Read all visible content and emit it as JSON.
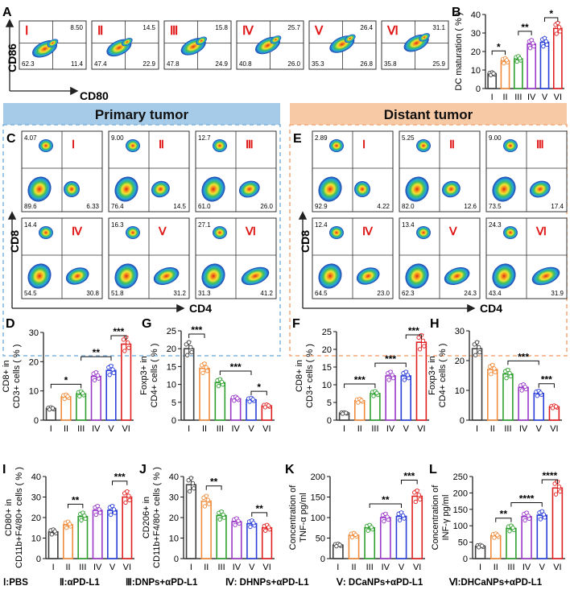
{
  "colors": {
    "groups": [
      "#404040",
      "#f08c3c",
      "#2fa02f",
      "#9a38c8",
      "#2a3fd8",
      "#e02020"
    ],
    "roman_red": "#e01818",
    "primary_bg": "#a6cbe8",
    "distant_bg": "#f7c9a5",
    "primary_border": "#7fb3dd",
    "distant_border": "#f2a876"
  },
  "groups": [
    "I",
    "II",
    "III",
    "IV",
    "V",
    "VI"
  ],
  "panel_letters": {
    "A": "A",
    "B": "B",
    "C": "C",
    "D": "D",
    "E": "E",
    "F": "F",
    "G": "G",
    "H": "H",
    "I": "I",
    "J": "J",
    "K": "K",
    "L": "L"
  },
  "section_titles": {
    "primary": "Primary tumor",
    "distant": "Distant tumor"
  },
  "flow": {
    "A": {
      "y_label": "CD86",
      "x_label": "CD80",
      "plots": [
        {
          "roman": "I",
          "ur": "8.50",
          "ll": "62.3",
          "lr": "11.4"
        },
        {
          "roman": "II",
          "ur": "14.5",
          "ll": "47.4",
          "lr": "22.9"
        },
        {
          "roman": "III",
          "ur": "15.8",
          "ll": "47.8",
          "lr": "24.9"
        },
        {
          "roman": "IV",
          "ur": "25.7",
          "ll": "40.8",
          "lr": "26.0"
        },
        {
          "roman": "V",
          "ur": "26.4",
          "ll": "35.3",
          "lr": "26.8"
        },
        {
          "roman": "VI",
          "ur": "31.1",
          "ll": "35.8",
          "lr": "25.9"
        }
      ]
    },
    "C": {
      "y_label": "CD8",
      "x_label": "CD4",
      "plots": [
        {
          "roman": "I",
          "ul": "4.07",
          "ll": "89.6",
          "lr": "6.33"
        },
        {
          "roman": "II",
          "ul": "9.00",
          "ll": "76.4",
          "lr": "14.5"
        },
        {
          "roman": "III",
          "ul": "12.7",
          "ll": "61.0",
          "lr": "26.0"
        },
        {
          "roman": "IV",
          "ul": "14.4",
          "ll": "54.5",
          "lr": "30.8"
        },
        {
          "roman": "V",
          "ul": "16.3",
          "ll": "51.8",
          "lr": "31.2"
        },
        {
          "roman": "VI",
          "ul": "27.1",
          "ll": "31.3",
          "lr": "41.2"
        }
      ]
    },
    "E": {
      "y_label": "CD8",
      "x_label": "CD4",
      "plots": [
        {
          "roman": "I",
          "ul": "2.89",
          "ll": "92.9",
          "lr": "4.22"
        },
        {
          "roman": "II",
          "ul": "5.25",
          "ll": "82.0",
          "lr": "12.6"
        },
        {
          "roman": "III",
          "ul": "9.00",
          "ll": "73.5",
          "lr": "17.4"
        },
        {
          "roman": "IV",
          "ul": "12.4",
          "ll": "64.5",
          "lr": "23.0"
        },
        {
          "roman": "V",
          "ul": "13.4",
          "ll": "62.3",
          "lr": "24.3"
        },
        {
          "roman": "VI",
          "ul": "24.3",
          "ll": "43.4",
          "lr": "31.9"
        }
      ]
    }
  },
  "chart_data": [
    {
      "panel": "B",
      "type": "bar",
      "categories": [
        "I",
        "II",
        "III",
        "IV",
        "V",
        "VI"
      ],
      "values": [
        8,
        15,
        16,
        24,
        25,
        32.5
      ],
      "ylabel": "DC maturation ( % )",
      "ylim": [
        0,
        40
      ],
      "yticks": [
        "0",
        "10",
        "20",
        "30",
        "40"
      ],
      "brackets": [
        {
          "from": 0,
          "to": 1,
          "label": "*"
        },
        {
          "from": 2,
          "to": 3,
          "label": "**"
        },
        {
          "from": 4,
          "to": 5,
          "label": "*"
        }
      ]
    },
    {
      "panel": "D",
      "type": "bar",
      "categories": [
        "I",
        "II",
        "III",
        "IV",
        "V",
        "VI"
      ],
      "values": [
        4,
        8,
        9,
        15,
        17,
        26
      ],
      "ylabel": [
        "CD8+ in",
        "CD3+ cells ( % )"
      ],
      "ylim": [
        0,
        30
      ],
      "yticks": [
        "0",
        "10",
        "20",
        "30"
      ],
      "brackets": [
        {
          "from": 0,
          "to": 2,
          "label": "*"
        },
        {
          "from": 2,
          "to": 4,
          "label": "**"
        },
        {
          "from": 4,
          "to": 5,
          "label": "***"
        }
      ]
    },
    {
      "panel": "G",
      "type": "bar",
      "categories": [
        "I",
        "II",
        "III",
        "IV",
        "V",
        "VI"
      ],
      "values": [
        20,
        14.5,
        10.5,
        6,
        5.7,
        4
      ],
      "ylabel": [
        "Foxp3+ in",
        "CD4+ cells ( % )"
      ],
      "ylim": [
        0,
        25
      ],
      "yticks": [
        "0",
        "5",
        "10",
        "15",
        "20",
        "25"
      ],
      "brackets": [
        {
          "from": 0,
          "to": 1,
          "label": "***"
        },
        {
          "from": 2,
          "to": 4,
          "label": "***"
        },
        {
          "from": 4,
          "to": 5,
          "label": "*"
        }
      ]
    },
    {
      "panel": "F",
      "type": "bar",
      "categories": [
        "I",
        "II",
        "III",
        "IV",
        "V",
        "VI"
      ],
      "values": [
        2,
        5.5,
        7.5,
        12.5,
        12.5,
        22
      ],
      "ylabel": [
        "CD8+ in",
        "CD3+ cells ( % )"
      ],
      "ylim": [
        0,
        25
      ],
      "yticks": [
        "0",
        "5",
        "10",
        "15",
        "20",
        "25"
      ],
      "brackets": [
        {
          "from": 0,
          "to": 2,
          "label": "***"
        },
        {
          "from": 2,
          "to": 4,
          "label": "***"
        },
        {
          "from": 4,
          "to": 5,
          "label": "***"
        }
      ]
    },
    {
      "panel": "H",
      "type": "bar",
      "categories": [
        "I",
        "II",
        "III",
        "IV",
        "V",
        "VI"
      ],
      "values": [
        24,
        17,
        15.5,
        11,
        9,
        4.5
      ],
      "ylabel": [
        "Foxp3+ in",
        "CD4+ cells ( % )"
      ],
      "ylim": [
        0,
        30
      ],
      "yticks": [
        "0",
        "10",
        "20",
        "30"
      ],
      "brackets": [
        {
          "from": 2,
          "to": 4,
          "label": "***"
        },
        {
          "from": 4,
          "to": 5,
          "label": "***"
        }
      ]
    },
    {
      "panel": "I",
      "type": "bar",
      "categories": [
        "I",
        "II",
        "III",
        "IV",
        "V",
        "VI"
      ],
      "values": [
        13,
        16.5,
        20.5,
        23.5,
        23.5,
        30
      ],
      "ylabel": [
        "CD80+ in",
        "CD11b+F4/80+ cells ( % )"
      ],
      "ylim": [
        0,
        40
      ],
      "yticks": [
        "0",
        "10",
        "20",
        "30",
        "40"
      ],
      "brackets": [
        {
          "from": 1,
          "to": 2,
          "label": "**"
        },
        {
          "from": 4,
          "to": 5,
          "label": "***"
        }
      ]
    },
    {
      "panel": "J",
      "type": "bar",
      "categories": [
        "I",
        "II",
        "III",
        "IV",
        "V",
        "VI"
      ],
      "values": [
        36,
        28,
        21,
        18,
        17,
        15
      ],
      "ylabel": [
        "CD206+ in",
        "CD11b+F4/80+ cells ( % )"
      ],
      "ylim": [
        0,
        40
      ],
      "yticks": [
        "0",
        "10",
        "20",
        "30",
        "40"
      ],
      "brackets": [
        {
          "from": 1,
          "to": 2,
          "label": "**"
        },
        {
          "from": 4,
          "to": 5,
          "label": "**"
        }
      ]
    },
    {
      "panel": "K",
      "type": "bar",
      "categories": [
        "I",
        "II",
        "III",
        "IV",
        "V",
        "VI"
      ],
      "values": [
        33,
        57,
        75,
        100,
        103,
        152
      ],
      "ylabel": [
        "Concentration of",
        "TNF-α pg/ml"
      ],
      "ylim": [
        0,
        200
      ],
      "yticks": [
        "0",
        "50",
        "100",
        "150",
        "200"
      ],
      "brackets": [
        {
          "from": 2,
          "to": 4,
          "label": "**"
        },
        {
          "from": 4,
          "to": 5,
          "label": "***"
        }
      ]
    },
    {
      "panel": "L",
      "type": "bar",
      "categories": [
        "I",
        "II",
        "III",
        "IV",
        "V",
        "VI"
      ],
      "values": [
        38,
        70,
        92,
        128,
        132,
        215
      ],
      "ylabel": [
        "Concentration of",
        "INF-γ pg/ml"
      ],
      "ylim": [
        0,
        250
      ],
      "yticks": [
        "0",
        "50",
        "100",
        "150",
        "200",
        "250"
      ],
      "brackets": [
        {
          "from": 1,
          "to": 2,
          "label": "**"
        },
        {
          "from": 2,
          "to": 4,
          "label": "****"
        },
        {
          "from": 4,
          "to": 5,
          "label": "****"
        }
      ]
    }
  ],
  "legend": [
    "Ⅰ:PBS",
    "Ⅱ:αPD-L1",
    "Ⅲ:DNPs+αPD-L1",
    "Ⅳ: DHNPs+αPD-L1",
    "Ⅴ: DCaNPs+αPD-L1",
    "Ⅵ:DHCaNPs+αPD-L1"
  ]
}
